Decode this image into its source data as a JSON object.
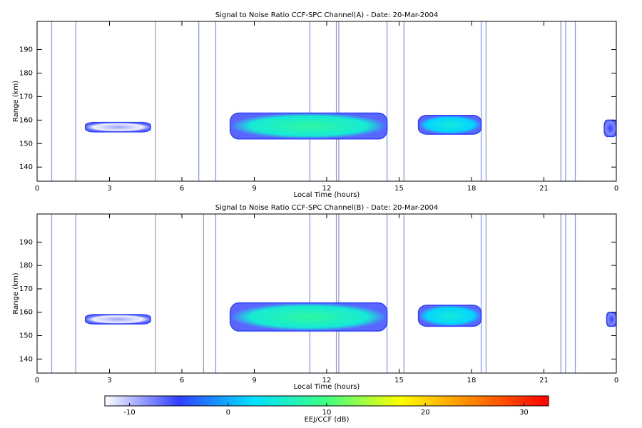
{
  "chart_data": [
    {
      "type": "heatmap",
      "title": "Signal to Noise Ratio CCF-SPC Channel(A) - Date: 20-Mar-2004",
      "x_label": "Local Time (hours)",
      "y_label": "Range (km)",
      "xlim": [
        0,
        24
      ],
      "xticks": [
        0,
        3,
        6,
        9,
        12,
        15,
        18,
        21,
        {
          "value": 24,
          "label": "0"
        }
      ],
      "ylim": [
        134,
        202
      ],
      "yticks": [
        140,
        150,
        160,
        170,
        180,
        190
      ],
      "echoes": [
        {
          "start": 2.0,
          "end": 4.7,
          "bottom": 155,
          "top": 159,
          "snr": -9
        },
        {
          "start": 8.0,
          "end": 14.5,
          "bottom": 152,
          "top": 163,
          "snr": 8
        },
        {
          "start": 15.8,
          "end": 18.4,
          "bottom": 154,
          "top": 162,
          "snr": 5
        },
        {
          "start": 23.5,
          "end": 24,
          "bottom": 153,
          "top": 160,
          "snr": -5
        }
      ],
      "interference": [
        0.6,
        1.6,
        4.9,
        6.7,
        7.4,
        11.3,
        12.4,
        12.5,
        14.5,
        15.2,
        18.4,
        18.6,
        21.7,
        21.9,
        22.3
      ]
    },
    {
      "type": "heatmap",
      "title": "Signal to Noise Ratio CCF-SPC Channel(B) - Date: 20-Mar-2004",
      "x_label": "Local Time (hours)",
      "y_label": "Range (km)",
      "xlim": [
        0,
        24
      ],
      "xticks": [
        0,
        3,
        6,
        9,
        12,
        15,
        18,
        21,
        {
          "value": 24,
          "label": "0"
        }
      ],
      "ylim": [
        134,
        202
      ],
      "yticks": [
        140,
        150,
        160,
        170,
        180,
        190
      ],
      "echoes": [
        {
          "start": 2.0,
          "end": 4.7,
          "bottom": 155,
          "top": 159,
          "snr": -9
        },
        {
          "start": 8.0,
          "end": 14.5,
          "bottom": 152,
          "top": 164,
          "snr": 8
        },
        {
          "start": 15.8,
          "end": 18.4,
          "bottom": 154,
          "top": 163,
          "snr": 5
        },
        {
          "start": 23.6,
          "end": 24,
          "bottom": 154,
          "top": 160,
          "snr": -5
        }
      ],
      "interference": [
        0.6,
        1.6,
        4.9,
        6.9,
        7.4,
        11.3,
        12.4,
        12.5,
        14.5,
        15.2,
        18.4,
        18.6,
        21.7,
        21.9,
        22.3
      ]
    },
    {
      "type": "colorbar",
      "label": "EEJ/CCF (dB)",
      "lim": [
        -12.5,
        32.5
      ],
      "ticks": [
        -10,
        0,
        10,
        20,
        30
      ],
      "colors": [
        "#ffffff",
        "#3040ff",
        "#00e0ff",
        "#40ff80",
        "#ffff00",
        "#ff8000",
        "#ff0000"
      ]
    }
  ]
}
